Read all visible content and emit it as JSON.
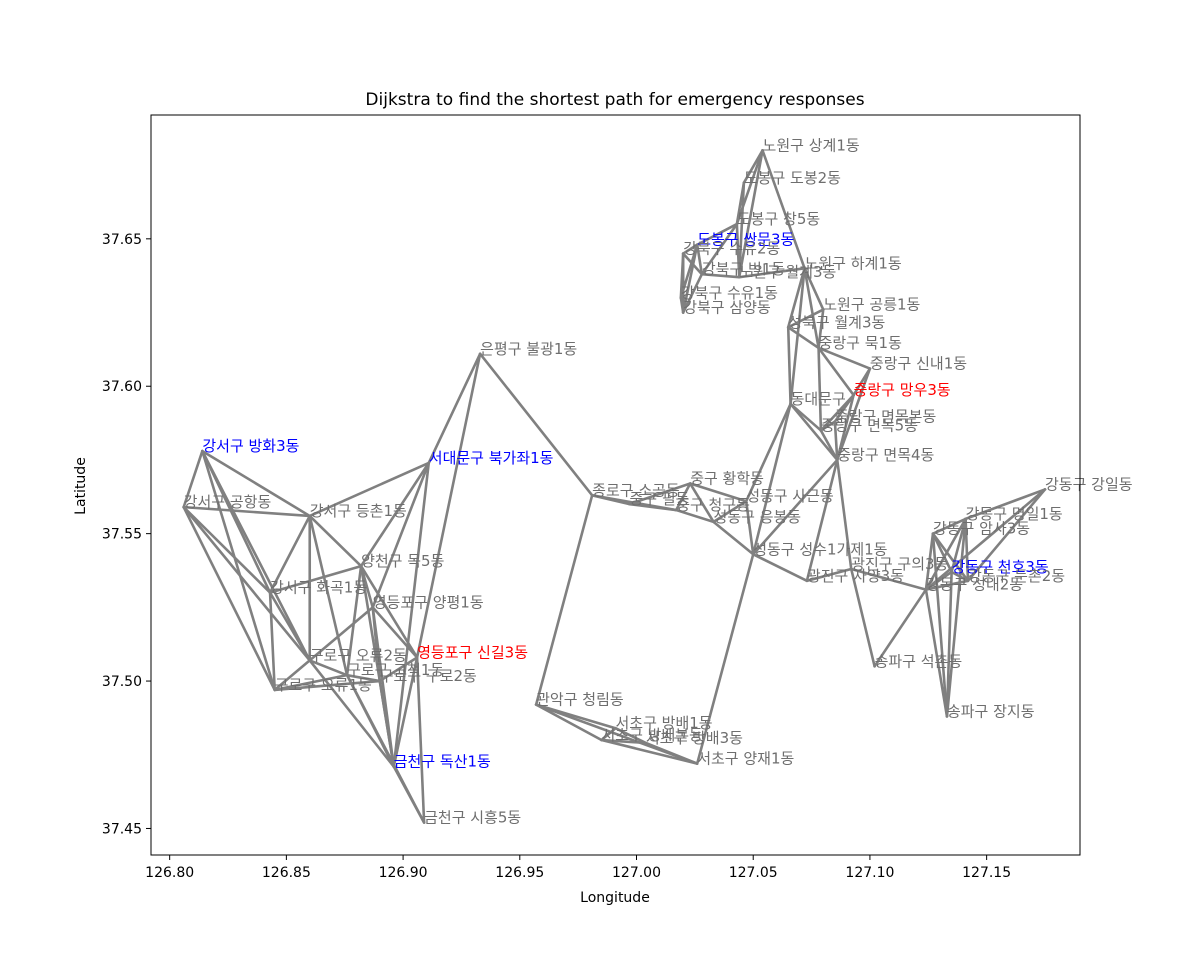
{
  "chart_data": {
    "type": "network",
    "title": "Dijkstra to find the shortest path for emergency responses",
    "xlabel": "Longitude",
    "ylabel": "Latitude",
    "xlim": [
      126.792,
      127.19
    ],
    "ylim": [
      37.441,
      37.692
    ],
    "x_ticks": [
      126.8,
      126.85,
      126.9,
      126.95,
      127.0,
      127.05,
      127.1,
      127.15
    ],
    "x_tick_labels": [
      "126.80",
      "126.85",
      "126.90",
      "126.95",
      "127.00",
      "127.05",
      "127.10",
      "127.15"
    ],
    "y_ticks": [
      37.45,
      37.5,
      37.55,
      37.6,
      37.65
    ],
    "y_tick_labels": [
      "37.45",
      "37.50",
      "37.55",
      "37.60",
      "37.65"
    ],
    "grid": false,
    "colors": {
      "edge": "#808080",
      "label_default": "#6e6e6e",
      "label_origin": "#0000ff",
      "label_target": "#ff0000"
    },
    "nodes": [
      {
        "name": "노원구 상계1동",
        "x": 127.054,
        "y": 37.68,
        "role": "default"
      },
      {
        "name": "도봉구 도봉2동",
        "x": 127.046,
        "y": 37.669,
        "role": "default"
      },
      {
        "name": "도봉구 창5동",
        "x": 127.043,
        "y": 37.655,
        "role": "default"
      },
      {
        "name": "도봉구 쌍문3동",
        "x": 127.026,
        "y": 37.648,
        "role": "origin"
      },
      {
        "name": "강북구 수유2동",
        "x": 127.02,
        "y": 37.645,
        "role": "default"
      },
      {
        "name": "강북구 번1동",
        "x": 127.028,
        "y": 37.638,
        "role": "default"
      },
      {
        "name": "노원구 월계3동",
        "x": 127.044,
        "y": 37.637,
        "role": "default"
      },
      {
        "name": "노원구 하계1동",
        "x": 127.072,
        "y": 37.64,
        "role": "default"
      },
      {
        "name": "강북구 수유1동",
        "x": 127.019,
        "y": 37.63,
        "role": "default"
      },
      {
        "name": "강북구 삼양동",
        "x": 127.02,
        "y": 37.625,
        "role": "default"
      },
      {
        "name": "노원구 공릉1동",
        "x": 127.08,
        "y": 37.626,
        "role": "default"
      },
      {
        "name": "성북구 월계3동",
        "x": 127.065,
        "y": 37.62,
        "role": "default"
      },
      {
        "name": "중랑구 묵1동",
        "x": 127.078,
        "y": 37.613,
        "role": "default"
      },
      {
        "name": "중랑구 신내1동",
        "x": 127.1,
        "y": 37.606,
        "role": "default"
      },
      {
        "name": "동대문구",
        "x": 127.066,
        "y": 37.594,
        "role": "default"
      },
      {
        "name": "중랑구 망우3동",
        "x": 127.093,
        "y": 37.597,
        "role": "target"
      },
      {
        "name": "중랑구 면목본동",
        "x": 127.085,
        "y": 37.588,
        "role": "default"
      },
      {
        "name": "중랑구 면목5동",
        "x": 127.079,
        "y": 37.585,
        "role": "default"
      },
      {
        "name": "중랑구 면목4동",
        "x": 127.086,
        "y": 37.575,
        "role": "default"
      },
      {
        "name": "은평구 불광1동",
        "x": 126.933,
        "y": 37.611,
        "role": "default"
      },
      {
        "name": "강서구 방화3동",
        "x": 126.814,
        "y": 37.578,
        "role": "origin"
      },
      {
        "name": "서대문구 북가좌1동",
        "x": 126.911,
        "y": 37.574,
        "role": "origin"
      },
      {
        "name": "강서구 공항동",
        "x": 126.806,
        "y": 37.559,
        "role": "default"
      },
      {
        "name": "강서구 등촌1동",
        "x": 126.86,
        "y": 37.556,
        "role": "default"
      },
      {
        "name": "양천구 목5동",
        "x": 126.882,
        "y": 37.539,
        "role": "default"
      },
      {
        "name": "강서구 화곡1동",
        "x": 126.843,
        "y": 37.53,
        "role": "default"
      },
      {
        "name": "영등포구 양평1동",
        "x": 126.887,
        "y": 37.525,
        "role": "default"
      },
      {
        "name": "영등포구 신길3동",
        "x": 126.906,
        "y": 37.508,
        "role": "target"
      },
      {
        "name": "구로구 오류2동",
        "x": 126.86,
        "y": 37.507,
        "role": "default"
      },
      {
        "name": "구로구 고척1동",
        "x": 126.876,
        "y": 37.502,
        "role": "default"
      },
      {
        "name": "구로구 구로2동",
        "x": 126.89,
        "y": 37.5,
        "role": "default"
      },
      {
        "name": "구로구 오류1동",
        "x": 126.845,
        "y": 37.497,
        "role": "default"
      },
      {
        "name": "금천구 독산1동",
        "x": 126.896,
        "y": 37.471,
        "role": "origin"
      },
      {
        "name": "금천구 시흥5동",
        "x": 126.909,
        "y": 37.452,
        "role": "default"
      },
      {
        "name": "종로구 소공동",
        "x": 126.981,
        "y": 37.563,
        "role": "default"
      },
      {
        "name": "중구 필동",
        "x": 126.997,
        "y": 37.56,
        "role": "default"
      },
      {
        "name": "중구 황학동",
        "x": 127.023,
        "y": 37.567,
        "role": "default"
      },
      {
        "name": "중구 청구동",
        "x": 127.017,
        "y": 37.558,
        "role": "default"
      },
      {
        "name": "성동구 사근동",
        "x": 127.047,
        "y": 37.561,
        "role": "default"
      },
      {
        "name": "성동구 응봉동",
        "x": 127.033,
        "y": 37.554,
        "role": "default"
      },
      {
        "name": "성동구 성수1가제1동",
        "x": 127.05,
        "y": 37.543,
        "role": "default"
      },
      {
        "name": "광진구 자양3동",
        "x": 127.073,
        "y": 37.534,
        "role": "default"
      },
      {
        "name": "광진구 구의3동",
        "x": 127.092,
        "y": 37.538,
        "role": "default"
      },
      {
        "name": "관악구 청림동",
        "x": 126.957,
        "y": 37.492,
        "role": "default"
      },
      {
        "name": "서초구 방배1동",
        "x": 126.991,
        "y": 37.484,
        "role": "default"
      },
      {
        "name": "서초구 방배본동",
        "x": 126.985,
        "y": 37.48,
        "role": "default"
      },
      {
        "name": "서초구 방배3동",
        "x": 127.004,
        "y": 37.479,
        "role": "default"
      },
      {
        "name": "서초구 양재1동",
        "x": 127.026,
        "y": 37.472,
        "role": "default"
      },
      {
        "name": "송파구 석촌동",
        "x": 127.102,
        "y": 37.505,
        "role": "default"
      },
      {
        "name": "송파구 장지동",
        "x": 127.133,
        "y": 37.488,
        "role": "default"
      },
      {
        "name": "강동구 강일동",
        "x": 127.175,
        "y": 37.565,
        "role": "default"
      },
      {
        "name": "강동구 명일1동",
        "x": 127.141,
        "y": 37.555,
        "role": "default"
      },
      {
        "name": "강동구 암사3동",
        "x": 127.127,
        "y": 37.55,
        "role": "default"
      },
      {
        "name": "강동구 천호3동",
        "x": 127.135,
        "y": 37.537,
        "role": "origin"
      },
      {
        "name": "강동구 성내2동",
        "x": 127.124,
        "y": 37.531,
        "role": "default"
      },
      {
        "name": "강동구 둔촌2동",
        "x": 127.142,
        "y": 37.534,
        "role": "default"
      }
    ],
    "edges": [
      [
        "노원구 상계1동",
        "도봉구 도봉2동"
      ],
      [
        "노원구 상계1동",
        "도봉구 창5동"
      ],
      [
        "노원구 상계1동",
        "노원구 하계1동"
      ],
      [
        "노원구 상계1동",
        "노원구 월계3동"
      ],
      [
        "도봉구 도봉2동",
        "도봉구 창5동"
      ],
      [
        "도봉구 도봉2동",
        "노원구 월계3동"
      ],
      [
        "도봉구 창5동",
        "도봉구 쌍문3동"
      ],
      [
        "도봉구 창5동",
        "강북구 번1동"
      ],
      [
        "도봉구 창5동",
        "노원구 월계3동"
      ],
      [
        "도봉구 쌍문3동",
        "강북구 수유2동"
      ],
      [
        "도봉구 쌍문3동",
        "강북구 번1동"
      ],
      [
        "도봉구 쌍문3동",
        "강북구 수유1동"
      ],
      [
        "도봉구 쌍문3동",
        "강북구 삼양동"
      ],
      [
        "강북구 수유2동",
        "강북구 수유1동"
      ],
      [
        "강북구 수유2동",
        "강북구 삼양동"
      ],
      [
        "강북구 수유2동",
        "강북구 번1동"
      ],
      [
        "강북구 번1동",
        "노원구 월계3동"
      ],
      [
        "강북구 번1동",
        "강북구 삼양동"
      ],
      [
        "강북구 수유1동",
        "강북구 삼양동"
      ],
      [
        "노원구 월계3동",
        "노원구 하계1동"
      ],
      [
        "노원구 하계1동",
        "성북구 월계3동"
      ],
      [
        "노원구 하계1동",
        "노원구 공릉1동"
      ],
      [
        "노원구 하계1동",
        "중랑구 묵1동"
      ],
      [
        "노원구 하계1동",
        "동대문구"
      ],
      [
        "노원구 공릉1동",
        "성북구 월계3동"
      ],
      [
        "노원구 공릉1동",
        "중랑구 묵1동"
      ],
      [
        "성북구 월계3동",
        "중랑구 묵1동"
      ],
      [
        "성북구 월계3동",
        "동대문구"
      ],
      [
        "중랑구 묵1동",
        "중랑구 신내1동"
      ],
      [
        "중랑구 묵1동",
        "중랑구 면목5동"
      ],
      [
        "중랑구 묵1동",
        "중랑구 망우3동"
      ],
      [
        "중랑구 신내1동",
        "중랑구 망우3동"
      ],
      [
        "중랑구 신내1동",
        "중랑구 면목4동"
      ],
      [
        "동대문구",
        "중랑구 면목5동"
      ],
      [
        "동대문구",
        "중랑구 면목4동"
      ],
      [
        "동대문구",
        "성동구 성수1가제1동"
      ],
      [
        "중랑구 망우3동",
        "중랑구 면목본동"
      ],
      [
        "중랑구 망우3동",
        "중랑구 면목5동"
      ],
      [
        "중랑구 망우3동",
        "중랑구 면목4동"
      ],
      [
        "중랑구 면목본동",
        "중랑구 면목5동"
      ],
      [
        "중랑구 면목본동",
        "중랑구 면목4동"
      ],
      [
        "중랑구 면목5동",
        "중랑구 면목4동"
      ],
      [
        "중랑구 면목4동",
        "광진구 자양3동"
      ],
      [
        "중랑구 면목4동",
        "광진구 구의3동"
      ],
      [
        "중랑구 면목4동",
        "성동구 성수1가제1동"
      ],
      [
        "은평구 불광1동",
        "서대문구 북가좌1동"
      ],
      [
        "은평구 불광1동",
        "종로구 소공동"
      ],
      [
        "은평구 불광1동",
        "영등포구 신길3동"
      ],
      [
        "강서구 방화3동",
        "강서구 공항동"
      ],
      [
        "강서구 방화3동",
        "강서구 등촌1동"
      ],
      [
        "강서구 방화3동",
        "강서구 화곡1동"
      ],
      [
        "강서구 방화3동",
        "구로구 오류2동"
      ],
      [
        "강서구 방화3동",
        "구로구 오류1동"
      ],
      [
        "서대문구 북가좌1동",
        "강서구 등촌1동"
      ],
      [
        "서대문구 북가좌1동",
        "양천구 목5동"
      ],
      [
        "서대문구 북가좌1동",
        "영등포구 양평1동"
      ],
      [
        "서대문구 북가좌1동",
        "금천구 독산1동"
      ],
      [
        "강서구 공항동",
        "강서구 등촌1동"
      ],
      [
        "강서구 공항동",
        "강서구 화곡1동"
      ],
      [
        "강서구 공항동",
        "구로구 오류1동"
      ],
      [
        "강서구 공항동",
        "구로구 오류2동"
      ],
      [
        "강서구 등촌1동",
        "강서구 화곡1동"
      ],
      [
        "강서구 등촌1동",
        "구로구 오류2동"
      ],
      [
        "강서구 등촌1동",
        "구로구 고척1동"
      ],
      [
        "강서구 등촌1동",
        "양천구 목5동"
      ],
      [
        "강서구 화곡1동",
        "구로구 오류2동"
      ],
      [
        "강서구 화곡1동",
        "구로구 오류1동"
      ],
      [
        "강서구 화곡1동",
        "양천구 목5동"
      ],
      [
        "양천구 목5동",
        "영등포구 양평1동"
      ],
      [
        "양천구 목5동",
        "영등포구 신길3동"
      ],
      [
        "양천구 목5동",
        "구로구 고척1동"
      ],
      [
        "양천구 목5동",
        "금천구 독산1동"
      ],
      [
        "영등포구 양평1동",
        "영등포구 신길3동"
      ],
      [
        "영등포구 양평1동",
        "구로구 오류2동"
      ],
      [
        "영등포구 양평1동",
        "금천구 독산1동"
      ],
      [
        "영등포구 양평1동",
        "구로구 구로2동"
      ],
      [
        "영등포구 신길3동",
        "구로구 구로2동"
      ],
      [
        "영등포구 신길3동",
        "금천구 독산1동"
      ],
      [
        "영등포구 신길3동",
        "금천구 시흥5동"
      ],
      [
        "구로구 오류2동",
        "구로구 고척1동"
      ],
      [
        "구로구 오류2동",
        "구로구 오류1동"
      ],
      [
        "구로구 오류2동",
        "금천구 독산1동"
      ],
      [
        "구로구 고척1동",
        "구로구 구로2동"
      ],
      [
        "구로구 고척1동",
        "구로구 오류1동"
      ],
      [
        "구로구 고척1동",
        "금천구 독산1동"
      ],
      [
        "구로구 구로2동",
        "구로구 오류1동"
      ],
      [
        "구로구 구로2동",
        "금천구 독산1동"
      ],
      [
        "금천구 독산1동",
        "금천구 시흥5동"
      ],
      [
        "구로구 고척1동",
        "금천구 시흥5동"
      ],
      [
        "종로구 소공동",
        "중구 필동"
      ],
      [
        "종로구 소공동",
        "중구 청구동"
      ],
      [
        "종로구 소공동",
        "관악구 청림동"
      ],
      [
        "중구 필동",
        "중구 청구동"
      ],
      [
        "중구 필동",
        "중구 황학동"
      ],
      [
        "중구 청구동",
        "중구 황학동"
      ],
      [
        "중구 청구동",
        "성동구 응봉동"
      ],
      [
        "중구 황학동",
        "성동구 사근동"
      ],
      [
        "중구 황학동",
        "성동구 응봉동"
      ],
      [
        "성동구 사근동",
        "성동구 응봉동"
      ],
      [
        "성동구 사근동",
        "성동구 성수1가제1동"
      ],
      [
        "성동구 사근동",
        "동대문구"
      ],
      [
        "성동구 응봉동",
        "성동구 성수1가제1동"
      ],
      [
        "성동구 성수1가제1동",
        "광진구 자양3동"
      ],
      [
        "성동구 성수1가제1동",
        "서초구 양재1동"
      ],
      [
        "광진구 자양3동",
        "광진구 구의3동"
      ],
      [
        "광진구 구의3동",
        "송파구 석촌동"
      ],
      [
        "광진구 구의3동",
        "강동구 성내2동"
      ],
      [
        "관악구 청림동",
        "서초구 방배본동"
      ],
      [
        "관악구 청림동",
        "서초구 방배1동"
      ],
      [
        "관악구 청림동",
        "서초구 양재1동"
      ],
      [
        "서초구 방배본동",
        "서초구 방배1동"
      ],
      [
        "서초구 방배본동",
        "서초구 방배3동"
      ],
      [
        "서초구 방배본동",
        "서초구 양재1동"
      ],
      [
        "서초구 방배1동",
        "서초구 방배3동"
      ],
      [
        "서초구 방배3동",
        "서초구 양재1동"
      ],
      [
        "송파구 석촌동",
        "강동구 성내2동"
      ],
      [
        "송파구 장지동",
        "강동구 성내2동"
      ],
      [
        "송파구 장지동",
        "강동구 천호3동"
      ],
      [
        "송파구 장지동",
        "강동구 명일1동"
      ],
      [
        "송파구 장지동",
        "강동구 암사3동"
      ],
      [
        "강동구 강일동",
        "강동구 명일1동"
      ],
      [
        "강동구 강일동",
        "강동구 성내2동"
      ],
      [
        "강동구 강일동",
        "강동구 둔촌2동"
      ],
      [
        "강동구 명일1동",
        "강동구 암사3동"
      ],
      [
        "강동구 명일1동",
        "강동구 천호3동"
      ],
      [
        "강동구 명일1동",
        "강동구 성내2동"
      ],
      [
        "강동구 명일1동",
        "강동구 둔촌2동"
      ],
      [
        "강동구 암사3동",
        "강동구 천호3동"
      ],
      [
        "강동구 암사3동",
        "강동구 성내2동"
      ],
      [
        "강동구 암사3동",
        "강동구 둔촌2동"
      ],
      [
        "강동구 천호3동",
        "강동구 성내2동"
      ],
      [
        "강동구 천호3동",
        "강동구 둔촌2동"
      ],
      [
        "강동구 성내2동",
        "강동구 둔촌2동"
      ]
    ]
  }
}
